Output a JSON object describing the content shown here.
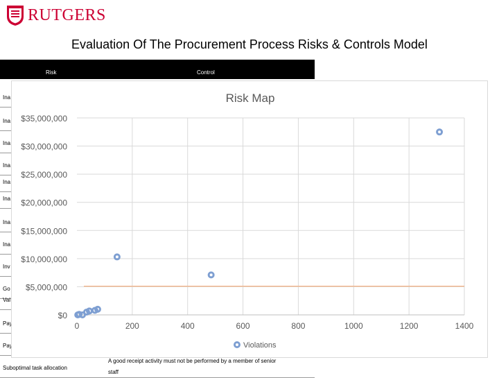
{
  "header": {
    "logo_text": "RUTGERS"
  },
  "slide": {
    "title": "Evaluation Of The Procurement Process Risks &  Controls Model"
  },
  "table": {
    "risk_header": "Risk",
    "control_header": "Control",
    "row_labels": [
      "Ina",
      "Ina",
      "Ina",
      "Ina",
      "Ina",
      "Ina",
      "Ina",
      "Ina",
      "Inv",
      "Go",
      "Val",
      "Pay",
      "Pay",
      "Suboptimal task allocation"
    ],
    "partial_control_text": "A good receipt activity must not be performed by a member of senior",
    "partial_control_text_2": "staff"
  },
  "colors": {
    "accent": "#cc0033",
    "marker": "#7e9fd2",
    "reference_line": "#f4b183"
  },
  "chart_data": {
    "type": "scatter",
    "title": "Risk Map",
    "xlabel": "",
    "ylabel": "",
    "xlim": [
      0,
      1400
    ],
    "ylim": [
      0,
      35000000
    ],
    "x_ticks": [
      0,
      200,
      400,
      600,
      800,
      1000,
      1200,
      1400
    ],
    "y_ticks": [
      0,
      5000000,
      10000000,
      15000000,
      20000000,
      25000000,
      30000000,
      35000000
    ],
    "y_tick_labels": [
      "$0",
      "$5,000,000",
      "$10,000,000",
      "$15,000,000",
      "$20,000,000",
      "$25,000,000",
      "$30,000,000",
      "$35,000,000"
    ],
    "grid": true,
    "legend_position": "bottom",
    "series": [
      {
        "name": "Violations",
        "x": [
          3,
          8,
          20,
          35,
          45,
          65,
          75,
          145,
          485,
          1310
        ],
        "y": [
          0,
          100000,
          0,
          500000,
          700000,
          800000,
          1000000,
          10300000,
          7100000,
          32500000
        ]
      }
    ],
    "reference_line": {
      "y": 5100000
    }
  }
}
